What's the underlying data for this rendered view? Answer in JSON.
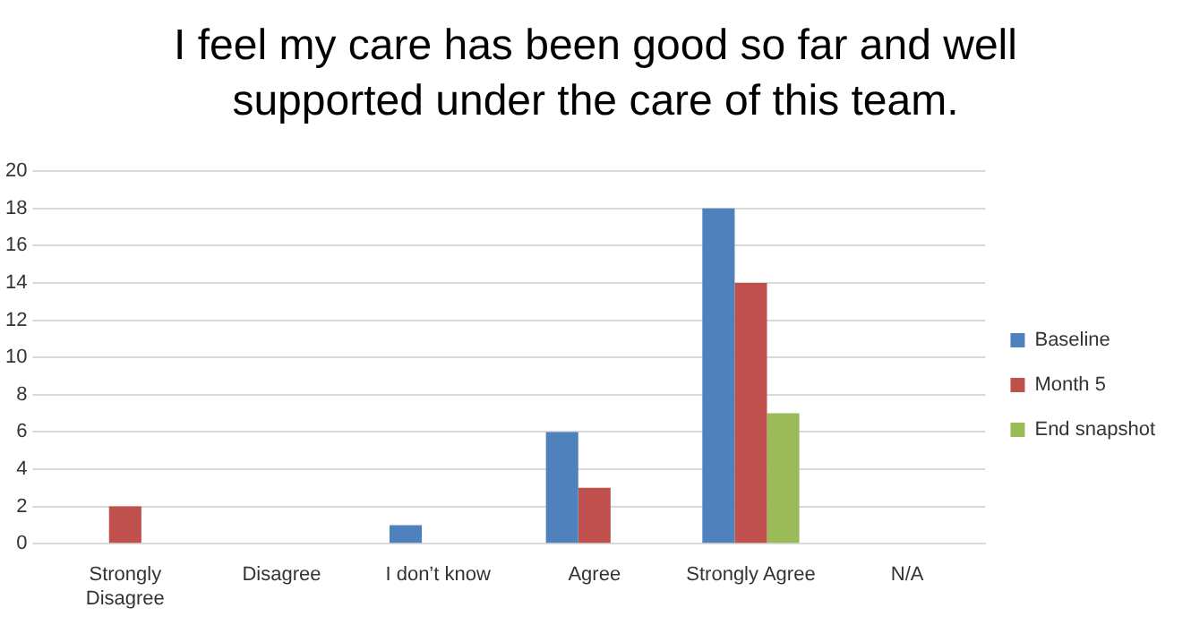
{
  "chart_data": {
    "type": "bar",
    "title": "I feel my care has been good so far and well supported under the care of this team.",
    "categories": [
      "Strongly Disagree",
      "Disagree",
      "I don’t know",
      "Agree",
      "Strongly Agree",
      "N/A"
    ],
    "series": [
      {
        "name": "Baseline",
        "color": "#4f81bd",
        "values": [
          0,
          0,
          1,
          6,
          18,
          0
        ]
      },
      {
        "name": "Month 5",
        "color": "#c0504d",
        "values": [
          2,
          0,
          0,
          3,
          14,
          0
        ]
      },
      {
        "name": "End snapshot",
        "color": "#9bbb59",
        "values": [
          0,
          0,
          0,
          0,
          7,
          0
        ]
      }
    ],
    "ylim": [
      0,
      20
    ],
    "yticks": [
      0,
      2,
      4,
      6,
      8,
      10,
      12,
      14,
      16,
      18,
      20
    ],
    "grid": "y",
    "legend": "right"
  }
}
